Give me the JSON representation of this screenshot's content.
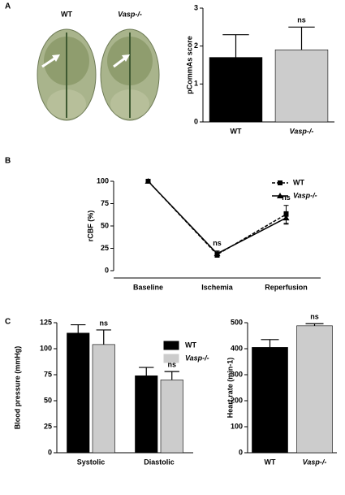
{
  "panels": [
    "A",
    "B",
    "C"
  ],
  "image_labels": [
    "WT",
    "Vasp-/-"
  ],
  "chart_data": [
    {
      "type": "bar",
      "ylabel": "pCommAs score",
      "categories": [
        "WT",
        "Vasp-/-"
      ],
      "values": [
        1.7,
        1.9
      ],
      "errors": [
        0.6,
        0.6
      ],
      "colors": [
        "#000000",
        "#cccccc"
      ],
      "ylim": [
        0,
        3
      ],
      "yticks": [
        0,
        1,
        2,
        3
      ],
      "annotations": [
        "ns"
      ]
    },
    {
      "type": "line",
      "ylabel": "rCBF (%)",
      "categories": [
        "Baseline",
        "Ischemia",
        "Reperfusion"
      ],
      "series": [
        {
          "name": "WT",
          "color": "#000000",
          "marker": "square",
          "dashed": true,
          "values": [
            100,
            18,
            63
          ],
          "errors": [
            null,
            3,
            10
          ]
        },
        {
          "name": "Vasp-/-",
          "color": "#000000",
          "marker": "triangle",
          "dashed": false,
          "values": [
            100,
            19,
            59
          ],
          "errors": [
            null,
            3,
            7
          ]
        }
      ],
      "ylim": [
        0,
        100
      ],
      "yticks": [
        0,
        25,
        50,
        75,
        100
      ],
      "annotations": [
        "ns",
        "ns"
      ],
      "legend": "top-right"
    },
    {
      "type": "bar",
      "ylabel": "Blood pressure (mmHg)",
      "categories": [
        "Systolic",
        "Diastolic"
      ],
      "series": [
        {
          "name": "WT",
          "color": "#000000",
          "values": [
            115,
            74
          ],
          "errors": [
            8,
            8
          ]
        },
        {
          "name": "Vasp-/-",
          "color": "#cccccc",
          "values": [
            104,
            70
          ],
          "errors": [
            14,
            8
          ]
        }
      ],
      "ylim": [
        0,
        125
      ],
      "yticks": [
        0,
        25,
        50,
        75,
        100,
        125
      ],
      "annotations": [
        "ns",
        "ns"
      ],
      "legend": "top-right"
    },
    {
      "type": "bar",
      "ylabel": "Heart rate (min-1)",
      "categories": [
        "WT",
        "Vasp-/-"
      ],
      "values": [
        405,
        488
      ],
      "errors": [
        30,
        8
      ],
      "colors": [
        "#000000",
        "#cccccc"
      ],
      "ylim": [
        0,
        500
      ],
      "yticks": [
        0,
        100,
        200,
        300,
        400,
        500
      ],
      "annotations": [
        "ns"
      ]
    }
  ]
}
